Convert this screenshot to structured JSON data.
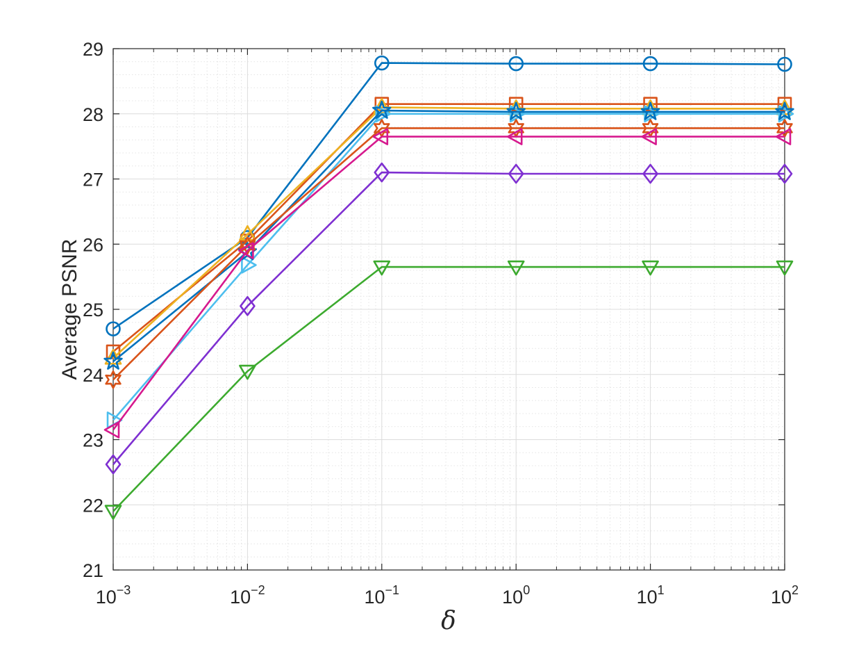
{
  "chart_data": {
    "type": "line",
    "xlabel": "δ",
    "ylabel": "Average PSNR",
    "x_scale": "log",
    "x": [
      0.001,
      0.01,
      0.1,
      1,
      10,
      100
    ],
    "x_tick_labels": [
      {
        "base": "10",
        "exp": "−3"
      },
      {
        "base": "10",
        "exp": "−2"
      },
      {
        "base": "10",
        "exp": "−1"
      },
      {
        "base": "10",
        "exp": "0"
      },
      {
        "base": "10",
        "exp": "1"
      },
      {
        "base": "10",
        "exp": "2"
      }
    ],
    "ylim": [
      21,
      29
    ],
    "y_ticks": [
      "21",
      "22",
      "23",
      "24",
      "25",
      "26",
      "27",
      "28",
      "29"
    ],
    "grid": true,
    "minor_grid": true,
    "legend": "none",
    "series": [
      {
        "color": "#0072BD",
        "marker": "circle",
        "values": [
          24.7,
          26.1,
          28.78,
          28.77,
          28.77,
          28.76
        ]
      },
      {
        "color": "#D95319",
        "marker": "square",
        "values": [
          24.35,
          26.05,
          28.15,
          28.15,
          28.15,
          28.15
        ]
      },
      {
        "color": "#EDB120",
        "marker": "triangle-up",
        "values": [
          24.25,
          26.15,
          28.1,
          28.08,
          28.08,
          28.08
        ]
      },
      {
        "color": "#4DBEEE",
        "marker": "triangle-right",
        "values": [
          23.3,
          25.68,
          28.0,
          28.0,
          28.0,
          28.0
        ]
      },
      {
        "color": "#0072BD",
        "marker": "pentagram",
        "values": [
          24.2,
          25.88,
          28.05,
          28.03,
          28.03,
          28.03
        ]
      },
      {
        "color": "#D95319",
        "marker": "hexagram",
        "values": [
          23.92,
          25.98,
          27.78,
          27.78,
          27.78,
          27.78
        ]
      },
      {
        "color": "#D6198E",
        "marker": "triangle-left",
        "values": [
          23.15,
          25.9,
          27.65,
          27.65,
          27.65,
          27.65
        ]
      },
      {
        "color": "#7E2FD1",
        "marker": "diamond",
        "values": [
          22.62,
          25.05,
          27.1,
          27.08,
          27.08,
          27.08
        ]
      },
      {
        "color": "#3CAA2E",
        "marker": "triangle-down",
        "values": [
          21.9,
          24.05,
          25.65,
          25.65,
          25.65,
          25.65
        ]
      }
    ]
  }
}
